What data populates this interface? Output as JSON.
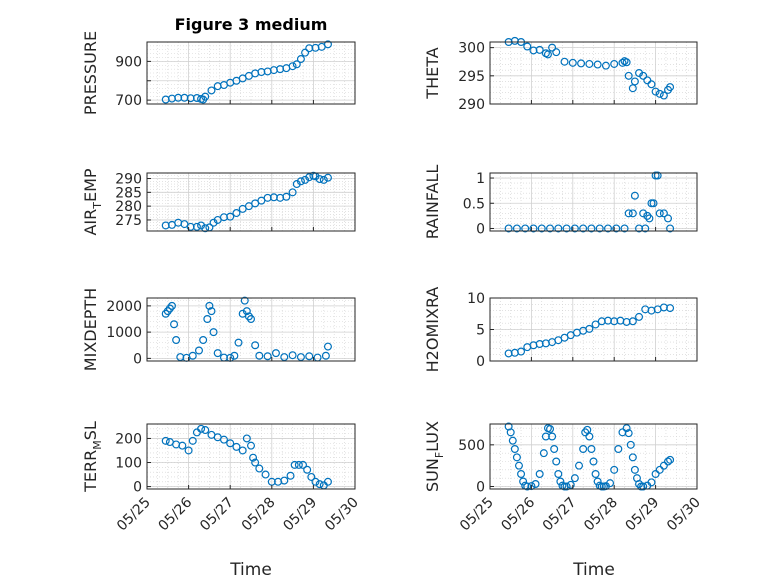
{
  "figure": {
    "title": "Figure 3 medium",
    "x_axis_label": "Time",
    "x_tick_labels": [
      "05/25",
      "05/26",
      "05/27",
      "05/28",
      "05/29",
      "05/30"
    ]
  },
  "colors": {
    "marker": "#0072BD",
    "axes": "#262626",
    "grid": "#d0d0d0"
  },
  "chart_data": [
    {
      "type": "scatter",
      "ylabel": "PRESSURE",
      "xlabel": "",
      "xlim": [
        "05/25",
        "05/30"
      ],
      "ylim": [
        680,
        1000
      ],
      "yticks": [
        700,
        800,
        900
      ],
      "ytick_labels": [
        "700",
        "",
        "900"
      ],
      "grid": true,
      "x": [
        25.45,
        25.6,
        25.75,
        25.9,
        26.05,
        26.2,
        26.3,
        26.35,
        26.4,
        26.55,
        26.7,
        26.85,
        27.0,
        27.15,
        27.3,
        27.45,
        27.6,
        27.75,
        27.9,
        28.05,
        28.2,
        28.35,
        28.5,
        28.6,
        28.7,
        28.8,
        28.9,
        29.05,
        29.2,
        29.35
      ],
      "y": [
        703,
        708,
        712,
        712,
        710,
        711,
        706,
        703,
        718,
        750,
        772,
        778,
        790,
        800,
        812,
        825,
        838,
        845,
        848,
        855,
        860,
        865,
        875,
        885,
        912,
        945,
        968,
        970,
        975,
        988
      ]
    },
    {
      "type": "scatter",
      "ylabel": "THETA",
      "xlabel": "",
      "xlim": [
        "05/25",
        "05/30"
      ],
      "ylim": [
        290,
        301
      ],
      "yticks": [
        290,
        295,
        300
      ],
      "ytick_labels": [
        "290",
        "295",
        "300"
      ],
      "grid": true,
      "x": [
        25.45,
        25.6,
        25.75,
        25.9,
        26.05,
        26.2,
        26.35,
        26.4,
        26.5,
        26.6,
        26.8,
        27.0,
        27.2,
        27.4,
        27.6,
        27.8,
        28.0,
        28.2,
        28.25,
        28.3,
        28.35,
        28.45,
        28.5,
        28.6,
        28.7,
        28.8,
        28.9,
        29.0,
        29.1,
        29.2,
        29.3,
        29.35
      ],
      "y": [
        301,
        301.2,
        301,
        300.2,
        299.5,
        299.6,
        299,
        298.8,
        300,
        299.2,
        297.5,
        297.3,
        297.2,
        297.1,
        297,
        296.8,
        297.1,
        297.3,
        297.6,
        297.4,
        295,
        292.8,
        294,
        295.5,
        295,
        294.2,
        293.5,
        292.2,
        291.8,
        291.5,
        292.5,
        293
      ]
    },
    {
      "type": "scatter",
      "ylabel": "AIR_TEMP",
      "xlabel": "",
      "xlim": [
        "05/25",
        "05/30"
      ],
      "ylim": [
        271,
        292
      ],
      "yticks": [
        275,
        280,
        285,
        290
      ],
      "ytick_labels": [
        "275",
        "280",
        "285",
        "290"
      ],
      "grid": true,
      "x": [
        25.45,
        25.6,
        25.75,
        25.9,
        26.05,
        26.2,
        26.3,
        26.4,
        26.5,
        26.6,
        26.7,
        26.85,
        27.0,
        27.15,
        27.3,
        27.45,
        27.6,
        27.75,
        27.9,
        28.05,
        28.2,
        28.35,
        28.5,
        28.6,
        28.7,
        28.8,
        28.9,
        29.0,
        29.05,
        29.15,
        29.25,
        29.35
      ],
      "y": [
        273,
        273.2,
        274,
        273.5,
        272.5,
        272.5,
        273,
        272,
        272.3,
        274,
        275,
        276,
        276.2,
        277.5,
        279,
        280,
        281,
        282,
        283,
        283.2,
        283,
        283.4,
        285,
        288,
        289,
        289.5,
        290.5,
        291,
        290.8,
        289.8,
        289.5,
        290.3
      ]
    },
    {
      "type": "scatter",
      "ylabel": "RAINFALL",
      "xlabel": "",
      "xlim": [
        "05/25",
        "05/30"
      ],
      "ylim": [
        -0.05,
        1.1
      ],
      "yticks": [
        0,
        0.5,
        1
      ],
      "ytick_labels": [
        "0",
        "0.5",
        "1"
      ],
      "grid": true,
      "x": [
        25.45,
        25.65,
        25.85,
        26.05,
        26.25,
        26.45,
        26.65,
        26.85,
        27.05,
        27.25,
        27.45,
        27.65,
        27.85,
        28.05,
        28.25,
        28.35,
        28.45,
        28.5,
        28.6,
        28.7,
        28.75,
        28.8,
        28.85,
        28.9,
        28.95,
        29.0,
        29.05,
        29.1,
        29.2,
        29.3,
        29.35
      ],
      "y": [
        0,
        0,
        0,
        0,
        0,
        0,
        0,
        0,
        0,
        0,
        0,
        0,
        0,
        0,
        0,
        0.3,
        0.3,
        0.65,
        0,
        0.3,
        0,
        0.25,
        0.2,
        0.5,
        0.5,
        1.05,
        1.05,
        0.3,
        0.3,
        0.2,
        0
      ]
    },
    {
      "type": "scatter",
      "ylabel": "MIXDEPTH",
      "xlabel": "",
      "xlim": [
        "05/25",
        "05/30"
      ],
      "ylim": [
        -100,
        2300
      ],
      "yticks": [
        0,
        1000,
        2000
      ],
      "ytick_labels": [
        "0",
        "1000",
        "2000"
      ],
      "grid": true,
      "x": [
        25.45,
        25.5,
        25.55,
        25.6,
        25.65,
        25.7,
        25.8,
        25.95,
        26.1,
        26.25,
        26.35,
        26.45,
        26.5,
        26.55,
        26.6,
        26.7,
        26.85,
        27.0,
        27.1,
        27.2,
        27.3,
        27.35,
        27.4,
        27.45,
        27.5,
        27.6,
        27.7,
        27.9,
        28.1,
        28.3,
        28.5,
        28.7,
        28.9,
        29.1,
        29.3,
        29.35
      ],
      "y": [
        1700,
        1800,
        1900,
        2000,
        1300,
        700,
        50,
        20,
        100,
        300,
        700,
        1500,
        2000,
        1800,
        1000,
        200,
        30,
        20,
        100,
        600,
        1700,
        2200,
        1800,
        1600,
        1500,
        500,
        100,
        80,
        200,
        50,
        120,
        50,
        80,
        30,
        100,
        450
      ]
    },
    {
      "type": "scatter",
      "ylabel": "H2OMIXRA",
      "xlabel": "",
      "xlim": [
        "05/25",
        "05/30"
      ],
      "ylim": [
        0,
        10
      ],
      "yticks": [
        0,
        5,
        10
      ],
      "ytick_labels": [
        "0",
        "5",
        "10"
      ],
      "grid": true,
      "x": [
        25.45,
        25.6,
        25.75,
        25.9,
        26.05,
        26.2,
        26.35,
        26.5,
        26.65,
        26.8,
        26.95,
        27.1,
        27.25,
        27.4,
        27.55,
        27.7,
        27.85,
        28.0,
        28.15,
        28.3,
        28.45,
        28.6,
        28.75,
        28.9,
        29.05,
        29.2,
        29.35
      ],
      "y": [
        1.2,
        1.3,
        1.5,
        2.2,
        2.5,
        2.7,
        2.8,
        3.0,
        3.3,
        3.7,
        4.1,
        4.5,
        4.8,
        5.1,
        5.8,
        6.3,
        6.4,
        6.3,
        6.4,
        6.2,
        6.3,
        7.0,
        8.2,
        8.0,
        8.2,
        8.5,
        8.4
      ]
    },
    {
      "type": "scatter",
      "ylabel": "TERR_MSL",
      "xlabel": "Time",
      "xlim": [
        "05/25",
        "05/30"
      ],
      "ylim": [
        -10,
        260
      ],
      "yticks": [
        0,
        100,
        200
      ],
      "ytick_labels": [
        "0",
        "100",
        "200"
      ],
      "grid": true,
      "x": [
        25.45,
        25.55,
        25.7,
        25.85,
        26.0,
        26.1,
        26.2,
        26.3,
        26.4,
        26.55,
        26.7,
        26.85,
        27.0,
        27.15,
        27.3,
        27.4,
        27.5,
        27.55,
        27.6,
        27.7,
        27.85,
        28.0,
        28.15,
        28.3,
        28.45,
        28.55,
        28.65,
        28.75,
        28.85,
        28.95,
        29.05,
        29.15,
        29.25,
        29.35
      ],
      "y": [
        190,
        185,
        175,
        170,
        150,
        190,
        225,
        240,
        235,
        215,
        205,
        195,
        180,
        165,
        150,
        200,
        170,
        120,
        100,
        75,
        50,
        20,
        20,
        25,
        45,
        90,
        90,
        90,
        70,
        40,
        20,
        10,
        5,
        20
      ]
    },
    {
      "type": "scatter",
      "ylabel": "SUN_FLUX",
      "xlabel": "Time",
      "xlim": [
        "05/25",
        "05/30"
      ],
      "ylim": [
        -30,
        750
      ],
      "yticks": [
        0,
        500
      ],
      "ytick_labels": [
        "0",
        "500"
      ],
      "grid": true,
      "x": [
        25.45,
        25.5,
        25.55,
        25.6,
        25.65,
        25.7,
        25.75,
        25.8,
        25.85,
        25.9,
        26.0,
        26.1,
        26.2,
        26.3,
        26.35,
        26.4,
        26.45,
        26.5,
        26.55,
        26.6,
        26.65,
        26.7,
        26.75,
        26.8,
        26.85,
        26.95,
        27.05,
        27.15,
        27.25,
        27.3,
        27.35,
        27.4,
        27.45,
        27.5,
        27.55,
        27.6,
        27.65,
        27.7,
        27.75,
        27.8,
        27.9,
        28.0,
        28.1,
        28.2,
        28.3,
        28.35,
        28.4,
        28.45,
        28.5,
        28.55,
        28.6,
        28.65,
        28.7,
        28.8,
        28.9,
        29.0,
        29.1,
        29.2,
        29.3,
        29.35
      ],
      "y": [
        720,
        650,
        550,
        450,
        350,
        250,
        150,
        60,
        10,
        0,
        5,
        30,
        150,
        400,
        600,
        700,
        690,
        600,
        450,
        300,
        150,
        60,
        10,
        0,
        0,
        20,
        100,
        250,
        450,
        650,
        680,
        600,
        450,
        300,
        150,
        60,
        10,
        0,
        0,
        5,
        40,
        200,
        450,
        650,
        700,
        640,
        500,
        350,
        200,
        100,
        30,
        0,
        0,
        10,
        50,
        150,
        200,
        250,
        300,
        320
      ]
    }
  ]
}
